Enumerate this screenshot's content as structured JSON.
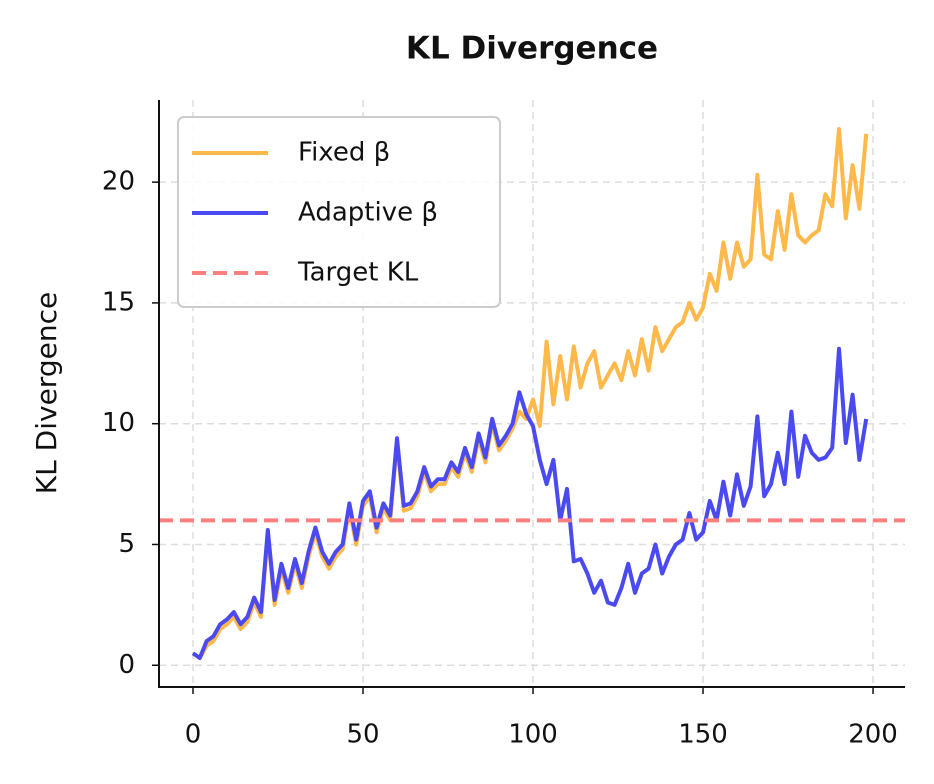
{
  "chart_data": {
    "type": "line",
    "title": "KL Divergence",
    "ylabel": "KL Divergence",
    "x": [
      0,
      2,
      4,
      6,
      8,
      10,
      12,
      14,
      16,
      18,
      20,
      22,
      24,
      26,
      28,
      30,
      32,
      34,
      36,
      38,
      40,
      42,
      44,
      46,
      48,
      50,
      52,
      54,
      56,
      58,
      60,
      62,
      64,
      66,
      68,
      70,
      72,
      74,
      76,
      78,
      80,
      82,
      84,
      86,
      88,
      90,
      92,
      94,
      96,
      98,
      100,
      102,
      104,
      106,
      108,
      110,
      112,
      114,
      116,
      118,
      120,
      122,
      124,
      126,
      128,
      130,
      132,
      134,
      136,
      138,
      140,
      142,
      144,
      146,
      148,
      150,
      152,
      154,
      156,
      158,
      160,
      162,
      164,
      166,
      168,
      170,
      172,
      174,
      176,
      178,
      180,
      182,
      184,
      186,
      188,
      190,
      192,
      194,
      196,
      198
    ],
    "series": [
      {
        "name": "Fixed β",
        "color": "#ffb84a",
        "values": [
          0.5,
          0.3,
          0.8,
          1.0,
          1.5,
          1.7,
          2.0,
          1.5,
          1.8,
          2.6,
          2.0,
          5.4,
          2.5,
          4.0,
          3.0,
          4.2,
          3.2,
          4.5,
          5.5,
          4.5,
          4.0,
          4.5,
          4.8,
          6.5,
          5.0,
          6.6,
          7.0,
          5.5,
          6.5,
          6.0,
          9.2,
          6.4,
          6.5,
          7.0,
          8.0,
          7.2,
          7.5,
          7.5,
          8.2,
          7.8,
          8.8,
          8.0,
          9.4,
          8.4,
          10.0,
          8.9,
          9.3,
          9.8,
          10.5,
          10.2,
          11.0,
          9.9,
          13.4,
          10.8,
          12.8,
          11.0,
          13.2,
          11.5,
          12.5,
          13.0,
          11.5,
          12.0,
          12.5,
          11.8,
          13.0,
          12.0,
          13.5,
          12.2,
          14.0,
          13.0,
          13.5,
          14.0,
          14.2,
          15.0,
          14.3,
          14.8,
          16.2,
          15.5,
          17.5,
          16.0,
          17.5,
          16.5,
          16.8,
          20.3,
          17.0,
          16.8,
          18.8,
          17.2,
          19.5,
          17.8,
          17.5,
          17.8,
          18.0,
          19.5,
          19.0,
          22.2,
          18.5,
          20.7,
          18.9,
          22.0
        ]
      },
      {
        "name": "Adaptive β",
        "color": "#4a4af0",
        "values": [
          0.5,
          0.3,
          1.0,
          1.2,
          1.7,
          1.9,
          2.2,
          1.7,
          2.0,
          2.8,
          2.2,
          5.6,
          2.7,
          4.2,
          3.2,
          4.4,
          3.4,
          4.7,
          5.7,
          4.7,
          4.2,
          4.7,
          5.0,
          6.7,
          5.2,
          6.8,
          7.2,
          5.7,
          6.7,
          6.2,
          9.4,
          6.6,
          6.7,
          7.2,
          8.2,
          7.4,
          7.7,
          7.7,
          8.4,
          8.0,
          9.0,
          8.2,
          9.6,
          8.6,
          10.2,
          9.1,
          9.5,
          10.0,
          11.3,
          10.4,
          9.9,
          8.5,
          7.5,
          8.5,
          6.0,
          7.3,
          4.3,
          4.4,
          3.8,
          3.0,
          3.5,
          2.6,
          2.5,
          3.2,
          4.2,
          3.0,
          3.8,
          4.0,
          5.0,
          3.8,
          4.5,
          5.0,
          5.2,
          6.3,
          5.2,
          5.5,
          6.8,
          6.0,
          7.6,
          6.2,
          7.9,
          6.6,
          7.4,
          10.3,
          7.0,
          7.5,
          8.8,
          7.5,
          10.5,
          7.8,
          9.5,
          8.8,
          8.5,
          8.6,
          9.0,
          13.1,
          9.2,
          11.2,
          8.5,
          10.2
        ]
      }
    ],
    "reference_line": {
      "name": "Target KL",
      "value": 6,
      "color": "#ff7f7f"
    },
    "xlim": [
      -10,
      209.4
    ],
    "ylim": [
      -0.9,
      23.4
    ],
    "xticks": [
      0,
      50,
      100,
      150,
      200
    ],
    "yticks": [
      0,
      5,
      10,
      15,
      20
    ],
    "grid": true,
    "legend": "upper left"
  }
}
